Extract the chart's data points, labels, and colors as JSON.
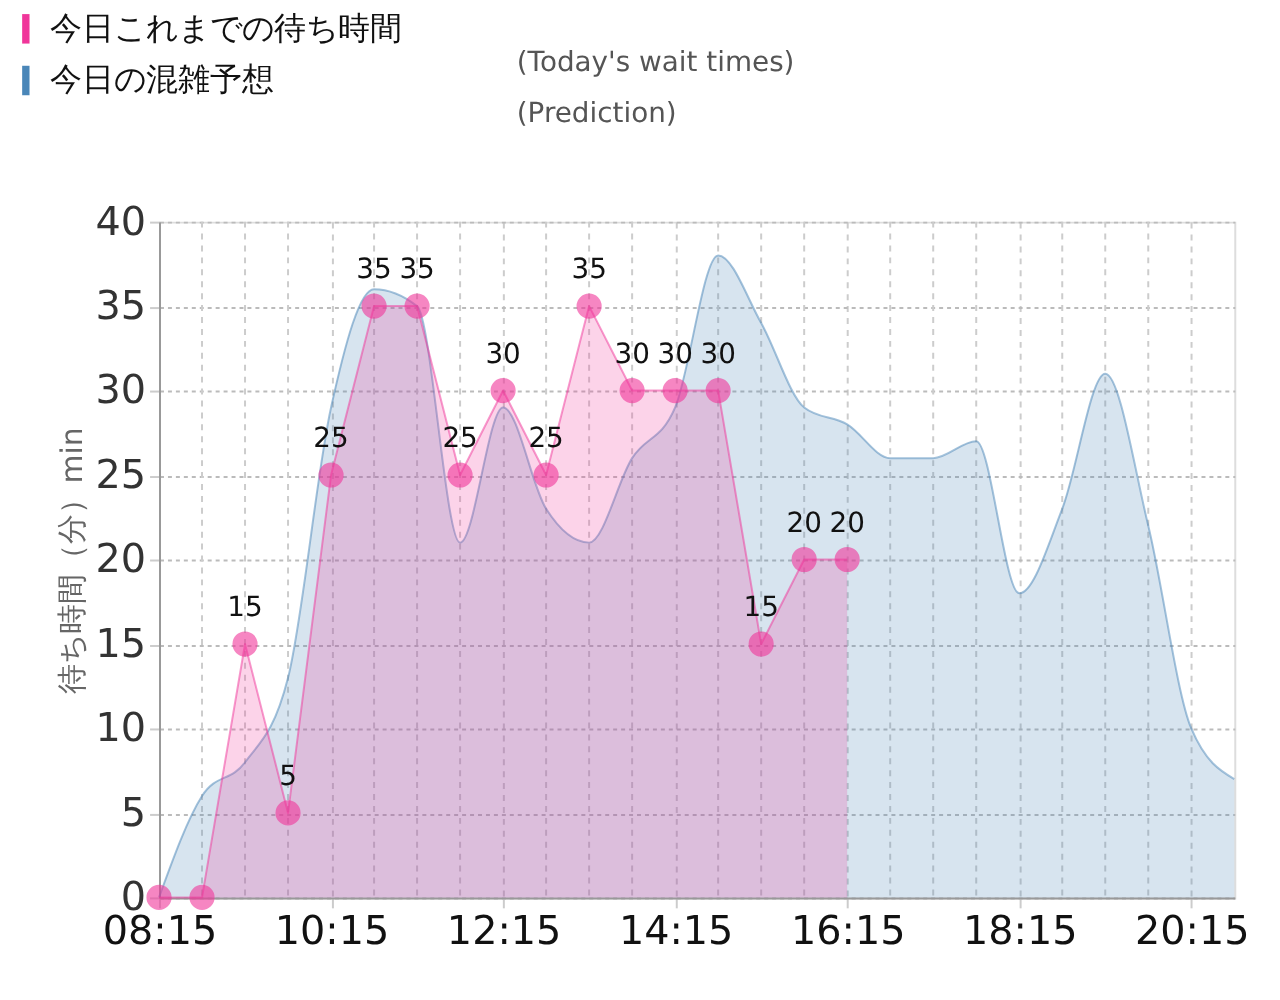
{
  "chart_data": {
    "type": "area",
    "ylabel": "待ち時間（分）min",
    "annotations": [
      "(Today's wait times)",
      "(Prediction)"
    ],
    "xlim": [
      8.25,
      20.75
    ],
    "xticks": [
      {
        "value": 8.25,
        "label": "08:15"
      },
      {
        "value": 8.75,
        "label": null
      },
      {
        "value": 9.25,
        "label": null
      },
      {
        "value": 9.75,
        "label": null
      },
      {
        "value": 10.25,
        "label": "10:15"
      },
      {
        "value": 10.75,
        "label": null
      },
      {
        "value": 11.25,
        "label": null
      },
      {
        "value": 11.75,
        "label": null
      },
      {
        "value": 12.25,
        "label": "12:15"
      },
      {
        "value": 12.75,
        "label": null
      },
      {
        "value": 13.25,
        "label": null
      },
      {
        "value": 13.75,
        "label": null
      },
      {
        "value": 14.25,
        "label": "14:15"
      },
      {
        "value": 14.75,
        "label": null
      },
      {
        "value": 15.25,
        "label": null
      },
      {
        "value": 15.75,
        "label": null
      },
      {
        "value": 16.25,
        "label": "16:15"
      },
      {
        "value": 16.75,
        "label": null
      },
      {
        "value": 17.25,
        "label": null
      },
      {
        "value": 17.75,
        "label": null
      },
      {
        "value": 18.25,
        "label": "18:15"
      },
      {
        "value": 18.75,
        "label": null
      },
      {
        "value": 19.25,
        "label": null
      },
      {
        "value": 19.75,
        "label": null
      },
      {
        "value": 20.25,
        "label": "20:15"
      }
    ],
    "ylim": [
      0,
      40
    ],
    "yticks": [
      0,
      5,
      10,
      15,
      20,
      25,
      30,
      35,
      40
    ],
    "grid": true,
    "legend": "top left",
    "series": [
      {
        "name": "今日これまでの待ち時間",
        "color": "#f0359a",
        "marker": "circle",
        "x": [
          8.25,
          8.75,
          9.25,
          9.75,
          10.25,
          10.75,
          11.25,
          11.75,
          12.25,
          12.75,
          13.25,
          13.75,
          14.25,
          14.75,
          15.25,
          15.75,
          16.25
        ],
        "values": [
          0,
          0,
          15,
          5,
          25,
          35,
          35,
          25,
          30,
          25,
          35,
          30,
          30,
          30,
          15,
          20,
          20
        ],
        "value_labels": [
          null,
          null,
          "15",
          "5",
          "25",
          "35",
          "35",
          "25",
          "30",
          "25",
          "35",
          "30",
          "30",
          "30",
          "15",
          "20",
          "20"
        ]
      },
      {
        "name": "今日の混雑予想",
        "color": "#4a86b8",
        "marker": "none",
        "x": [
          8.25,
          8.75,
          9.25,
          9.75,
          10.25,
          10.75,
          11.25,
          11.75,
          12.25,
          12.75,
          13.25,
          13.75,
          14.25,
          14.75,
          15.25,
          15.75,
          16.25,
          16.75,
          17.25,
          17.75,
          18.25,
          18.75,
          19.25,
          19.75,
          20.25,
          20.75
        ],
        "values": [
          0,
          6,
          8,
          13,
          29,
          36,
          35,
          21,
          29,
          23,
          21,
          26,
          29,
          38,
          34,
          29,
          28,
          26,
          26,
          27,
          18,
          23,
          31,
          22,
          10,
          7
        ]
      }
    ]
  }
}
